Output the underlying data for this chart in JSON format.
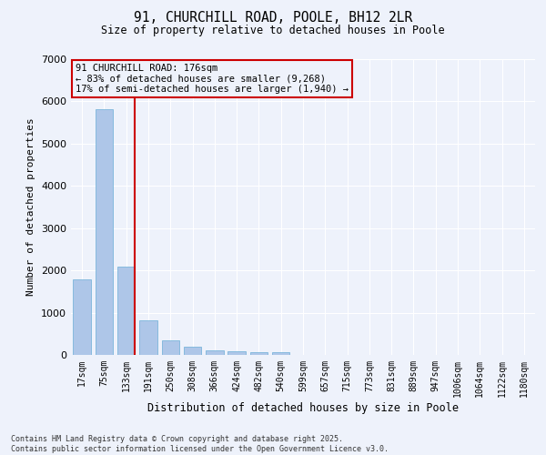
{
  "title1": "91, CHURCHILL ROAD, POOLE, BH12 2LR",
  "title2": "Size of property relative to detached houses in Poole",
  "xlabel": "Distribution of detached houses by size in Poole",
  "ylabel": "Number of detached properties",
  "categories": [
    "17sqm",
    "75sqm",
    "133sqm",
    "191sqm",
    "250sqm",
    "308sqm",
    "366sqm",
    "424sqm",
    "482sqm",
    "540sqm",
    "599sqm",
    "657sqm",
    "715sqm",
    "773sqm",
    "831sqm",
    "889sqm",
    "947sqm",
    "1006sqm",
    "1064sqm",
    "1122sqm",
    "1180sqm"
  ],
  "values": [
    1780,
    5820,
    2080,
    820,
    340,
    190,
    115,
    90,
    75,
    55,
    0,
    0,
    0,
    0,
    0,
    0,
    0,
    0,
    0,
    0,
    0
  ],
  "bar_color": "#aec6e8",
  "bar_edgecolor": "#6aaed6",
  "bg_color": "#eef2fb",
  "grid_color": "#ffffff",
  "vline_x_index": 2,
  "vline_color": "#cc0000",
  "annotation_title": "91 CHURCHILL ROAD: 176sqm",
  "annotation_line1": "← 83% of detached houses are smaller (9,268)",
  "annotation_line2": "17% of semi-detached houses are larger (1,940) →",
  "annotation_box_color": "#cc0000",
  "ylim": [
    0,
    7000
  ],
  "yticks": [
    0,
    1000,
    2000,
    3000,
    4000,
    5000,
    6000,
    7000
  ],
  "footnote1": "Contains HM Land Registry data © Crown copyright and database right 2025.",
  "footnote2": "Contains public sector information licensed under the Open Government Licence v3.0."
}
